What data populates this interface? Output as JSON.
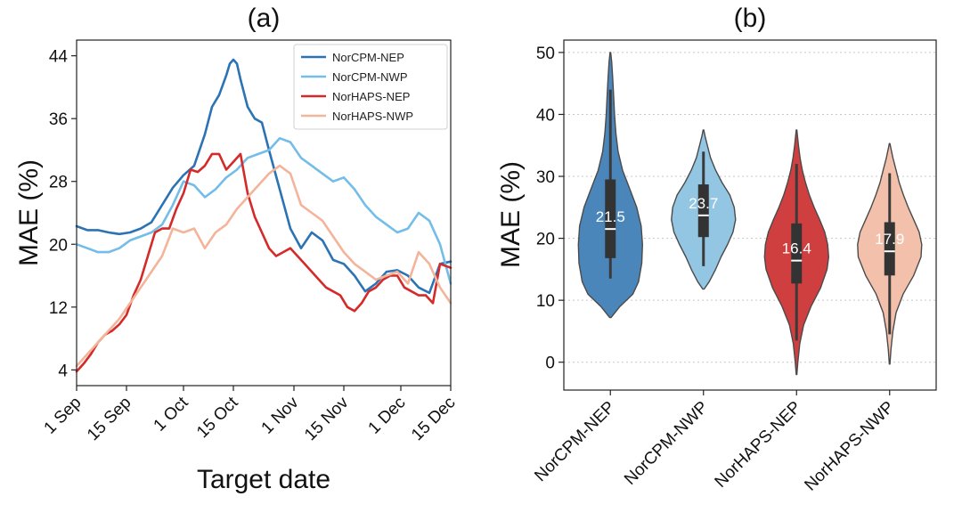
{
  "chart_data": [
    {
      "panel": "(a)",
      "type": "line",
      "title": "(a)",
      "xlabel": "Target date",
      "ylabel": "MAE (%)",
      "xlim": [
        0,
        105
      ],
      "ylim": [
        2,
        46
      ],
      "x_ticks": [
        0,
        14,
        30,
        44,
        61,
        75,
        91,
        105
      ],
      "x_tick_labels": [
        "1 Sep",
        "15 Sep",
        "1 Oct",
        "15 Oct",
        "1 Nov",
        "15 Nov",
        "1 Dec",
        "15 Dec"
      ],
      "y_ticks": [
        4,
        12,
        20,
        28,
        36,
        44
      ],
      "y_tick_labels": [
        "4",
        "12",
        "20",
        "28",
        "36",
        "44"
      ],
      "legend_position": "top-right",
      "series": [
        {
          "name": "NorCPM-NEP",
          "color": "#2b73b5",
          "x": [
            0,
            3,
            6,
            9,
            12,
            15,
            18,
            21,
            24,
            27,
            30,
            33,
            36,
            38,
            40,
            42,
            43,
            44,
            45,
            46,
            48,
            50,
            52,
            54,
            57,
            60,
            63,
            66,
            69,
            72,
            75,
            78,
            81,
            84,
            87,
            90,
            93,
            96,
            99,
            102,
            105
          ],
          "y": [
            22.3,
            21.8,
            21.8,
            21.5,
            21.3,
            21.5,
            22.0,
            22.8,
            25.0,
            27.2,
            28.8,
            30.0,
            34.0,
            37.5,
            39.0,
            41.5,
            43.0,
            43.5,
            43.0,
            41.0,
            37.5,
            36.0,
            35.5,
            32.0,
            27.0,
            22.0,
            19.5,
            21.5,
            20.5,
            18.0,
            17.5,
            16.0,
            14.0,
            15.0,
            16.5,
            16.7,
            16.0,
            14.5,
            13.8,
            17.5,
            17.8
          ]
        },
        {
          "name": "NorCPM-NWP",
          "color": "#74bde8",
          "x": [
            0,
            3,
            6,
            9,
            12,
            15,
            18,
            21,
            24,
            27,
            30,
            33,
            36,
            39,
            42,
            45,
            48,
            51,
            54,
            57,
            60,
            63,
            66,
            69,
            72,
            75,
            78,
            81,
            84,
            87,
            90,
            93,
            96,
            99,
            102,
            105
          ],
          "y": [
            20.0,
            19.5,
            19.0,
            19.0,
            19.5,
            20.5,
            21.0,
            21.5,
            22.5,
            25.0,
            28.0,
            27.5,
            26.0,
            27.0,
            28.5,
            29.5,
            31.0,
            31.5,
            32.0,
            33.5,
            33.0,
            31.0,
            30.0,
            29.0,
            28.0,
            28.5,
            27.0,
            25.0,
            23.5,
            22.5,
            21.5,
            22.0,
            24.0,
            23.0,
            20.0,
            15.0
          ]
        },
        {
          "name": "NorHAPS-NEP",
          "color": "#d42a2a",
          "x": [
            0,
            2,
            4,
            6,
            8,
            10,
            12,
            14,
            16,
            18,
            20,
            22,
            24,
            26,
            28,
            30,
            32,
            34,
            36,
            38,
            40,
            42,
            44,
            46,
            48,
            50,
            52,
            54,
            56,
            58,
            60,
            62,
            64,
            66,
            68,
            70,
            72,
            74,
            76,
            78,
            80,
            82,
            84,
            86,
            88,
            90,
            92,
            94,
            96,
            98,
            100,
            102,
            105
          ],
          "y": [
            3.8,
            4.8,
            6.0,
            7.5,
            8.5,
            9.0,
            9.8,
            11.0,
            13.5,
            15.5,
            18.5,
            21.5,
            22.0,
            22.0,
            24.5,
            26.5,
            29.5,
            29.2,
            30.0,
            31.5,
            31.5,
            29.5,
            30.5,
            31.5,
            26.5,
            23.5,
            21.5,
            19.5,
            18.5,
            19.0,
            19.5,
            18.5,
            17.5,
            16.5,
            15.5,
            14.5,
            14.0,
            13.5,
            12.0,
            11.5,
            12.5,
            14.0,
            14.5,
            15.5,
            16.0,
            16.0,
            14.5,
            14.0,
            13.5,
            13.5,
            12.5,
            17.5,
            17.0
          ]
        },
        {
          "name": "NorHAPS-NWP",
          "color": "#f4b49a",
          "x": [
            0,
            3,
            6,
            9,
            12,
            15,
            18,
            21,
            24,
            27,
            30,
            33,
            36,
            39,
            42,
            45,
            48,
            51,
            54,
            57,
            60,
            63,
            66,
            69,
            72,
            75,
            78,
            81,
            84,
            87,
            90,
            93,
            96,
            99,
            102,
            105
          ],
          "y": [
            4.5,
            6.0,
            7.5,
            9.0,
            10.5,
            12.5,
            14.5,
            16.5,
            18.5,
            22.0,
            21.5,
            22.0,
            19.5,
            21.5,
            22.5,
            24.5,
            26.0,
            27.5,
            29.0,
            30.0,
            29.0,
            25.0,
            24.0,
            23.0,
            21.0,
            19.0,
            17.5,
            16.5,
            15.5,
            16.0,
            16.5,
            15.0,
            19.0,
            17.5,
            14.5,
            12.5
          ]
        }
      ]
    },
    {
      "panel": "(b)",
      "type": "violin",
      "title": "(b)",
      "xlabel": "",
      "ylabel": "MAE (%)",
      "ylim": [
        -4.5,
        52
      ],
      "y_ticks": [
        0,
        10,
        20,
        30,
        40,
        50
      ],
      "y_tick_labels": [
        "0",
        "10",
        "20",
        "30",
        "40",
        "50"
      ],
      "categories": [
        "NorCPM-NEP",
        "NorCPM-NWP",
        "NorHAPS-NEP",
        "NorHAPS-NWP"
      ],
      "colors": [
        "#4a86ba",
        "#92c6e3",
        "#d03f3f",
        "#f3c1ab"
      ],
      "medians": [
        21.5,
        23.7,
        16.4,
        17.9
      ],
      "median_labels": [
        "21.5",
        "23.7",
        "16.4",
        "17.9"
      ],
      "q1": [
        16.8,
        20.2,
        12.7,
        14.0
      ],
      "q3": [
        29.5,
        28.7,
        22.4,
        22.6
      ],
      "whisker_low": [
        13.5,
        15.5,
        3.5,
        4.5
      ],
      "whisker_high": [
        44.0,
        34.0,
        32.0,
        30.5
      ],
      "kde_min": [
        7.2,
        11.8,
        -2.0,
        -0.3
      ],
      "kde_max": [
        50.0,
        37.5,
        37.5,
        35.3
      ],
      "density_profiles": [
        [
          [
            7.2,
            0.02
          ],
          [
            9,
            0.3
          ],
          [
            11,
            0.7
          ],
          [
            13,
            0.88
          ],
          [
            16,
            0.98
          ],
          [
            19,
            1.0
          ],
          [
            22,
            0.96
          ],
          [
            25,
            0.82
          ],
          [
            28,
            0.6
          ],
          [
            31,
            0.38
          ],
          [
            34,
            0.24
          ],
          [
            37,
            0.17
          ],
          [
            40,
            0.13
          ],
          [
            43,
            0.1
          ],
          [
            46,
            0.07
          ],
          [
            48.5,
            0.04
          ],
          [
            50,
            0.01
          ]
        ],
        [
          [
            11.8,
            0.02
          ],
          [
            13,
            0.18
          ],
          [
            15,
            0.38
          ],
          [
            17,
            0.55
          ],
          [
            19,
            0.75
          ],
          [
            21,
            0.92
          ],
          [
            23,
            1.0
          ],
          [
            25,
            0.96
          ],
          [
            27,
            0.82
          ],
          [
            29,
            0.58
          ],
          [
            31,
            0.38
          ],
          [
            33,
            0.22
          ],
          [
            35,
            0.12
          ],
          [
            36.5,
            0.05
          ],
          [
            37.5,
            0.01
          ]
        ],
        [
          [
            -2,
            0.01
          ],
          [
            0,
            0.04
          ],
          [
            3,
            0.1
          ],
          [
            6,
            0.22
          ],
          [
            9,
            0.45
          ],
          [
            12,
            0.75
          ],
          [
            15,
            0.95
          ],
          [
            17,
            1.0
          ],
          [
            19,
            0.97
          ],
          [
            21,
            0.88
          ],
          [
            23,
            0.72
          ],
          [
            25,
            0.55
          ],
          [
            27,
            0.4
          ],
          [
            29,
            0.28
          ],
          [
            31,
            0.18
          ],
          [
            33,
            0.11
          ],
          [
            35,
            0.06
          ],
          [
            36.5,
            0.03
          ],
          [
            37.5,
            0.01
          ]
        ],
        [
          [
            -0.3,
            0.01
          ],
          [
            2,
            0.04
          ],
          [
            5,
            0.1
          ],
          [
            8,
            0.2
          ],
          [
            11,
            0.42
          ],
          [
            14,
            0.75
          ],
          [
            17,
            0.98
          ],
          [
            19,
            1.0
          ],
          [
            21,
            0.92
          ],
          [
            23,
            0.75
          ],
          [
            25,
            0.58
          ],
          [
            27,
            0.43
          ],
          [
            29,
            0.3
          ],
          [
            31,
            0.2
          ],
          [
            33,
            0.1
          ],
          [
            34.5,
            0.04
          ],
          [
            35.3,
            0.01
          ]
        ]
      ]
    }
  ]
}
